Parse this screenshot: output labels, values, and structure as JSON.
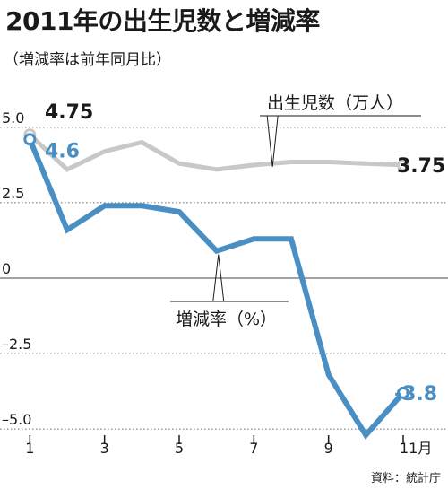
{
  "title": "2011年の出生児数と増減率",
  "subtitle": "（増減率は前年同月比）",
  "source": "資料：統計庁",
  "colors": {
    "births": "#c8c8c8",
    "rate": "#4a8fc4",
    "grid": "#6a6a6a"
  },
  "chart_data": {
    "type": "line",
    "x": [
      1,
      2,
      3,
      4,
      5,
      6,
      7,
      8,
      9,
      10,
      11
    ],
    "x_tick_labels": [
      "1",
      "3",
      "5",
      "7",
      "9",
      "11月"
    ],
    "x_tick_values": [
      1,
      3,
      5,
      7,
      9,
      11
    ],
    "y_tick_labels": [
      "5.0",
      "2.5",
      "0",
      "–2.5",
      "–5.0"
    ],
    "y_tick_values": [
      5,
      2.5,
      0,
      -2.5,
      -5
    ],
    "ylim": [
      -5.5,
      5.5
    ],
    "xlim": [
      0.2,
      12.2
    ],
    "grid": "horizontal-dotted",
    "series": [
      {
        "name": "出生児数（万人）",
        "values": [
          4.75,
          3.6,
          4.2,
          4.5,
          3.8,
          3.6,
          3.75,
          3.85,
          3.85,
          3.8,
          3.75
        ],
        "start_label": "4.75",
        "end_label": "3.75"
      },
      {
        "name": "増減率（%）",
        "values": [
          4.6,
          1.6,
          2.4,
          2.4,
          2.2,
          0.9,
          1.3,
          1.3,
          -3.2,
          -5.2,
          -3.8
        ],
        "start_label": "4.6",
        "end_label": "-3.8"
      }
    ]
  }
}
